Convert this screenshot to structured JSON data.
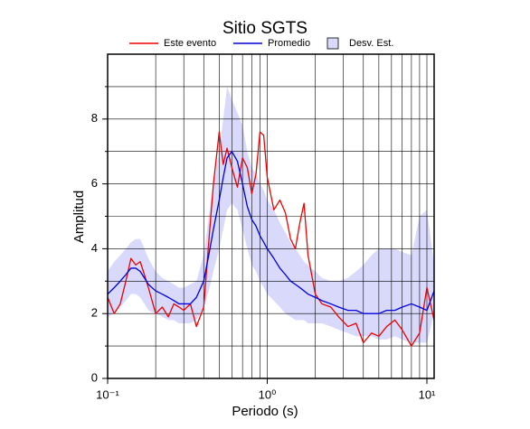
{
  "chart_data": {
    "type": "line",
    "title": "Sitio SGTS",
    "xlabel": "Periodo (s)",
    "ylabel": "Amplitud",
    "xscale": "log",
    "grid": true,
    "xlim": [
      0.1,
      11.1
    ],
    "ylim": [
      0,
      10
    ],
    "xticks": [
      {
        "value": 0.1,
        "label": "10⁻¹"
      },
      {
        "value": 1,
        "label": "10⁰"
      },
      {
        "value": 10,
        "label": "10¹"
      }
    ],
    "xminorticks": [
      0.2,
      0.3,
      0.4,
      0.5,
      0.6,
      0.7,
      0.8,
      0.9,
      2,
      3,
      4,
      5,
      6,
      7,
      8,
      9
    ],
    "yticks": [
      0,
      2,
      4,
      6,
      8
    ],
    "yminorticks": [
      1,
      3,
      5,
      7,
      9
    ],
    "x": [
      0.1,
      0.11,
      0.12,
      0.13,
      0.14,
      0.15,
      0.16,
      0.17,
      0.18,
      0.2,
      0.22,
      0.24,
      0.26,
      0.28,
      0.3,
      0.33,
      0.36,
      0.4,
      0.43,
      0.46,
      0.5,
      0.53,
      0.56,
      0.6,
      0.65,
      0.7,
      0.75,
      0.8,
      0.85,
      0.9,
      0.95,
      1.0,
      1.1,
      1.2,
      1.3,
      1.4,
      1.5,
      1.6,
      1.7,
      1.8,
      2.0,
      2.2,
      2.5,
      2.8,
      3.2,
      3.6,
      4.0,
      4.5,
      5.0,
      5.6,
      6.3,
      7.0,
      8.0,
      9.0,
      10.0,
      11.1
    ],
    "band": {
      "name": "Desv. Est.",
      "color": "#d9d9fb",
      "upper": [
        3.3,
        3.6,
        3.8,
        4.0,
        4.2,
        4.3,
        4.3,
        4.0,
        3.7,
        3.3,
        3.1,
        3.0,
        2.9,
        2.8,
        2.8,
        2.9,
        3.0,
        3.8,
        5.0,
        6.0,
        7.0,
        8.0,
        9.0,
        8.6,
        8.2,
        7.8,
        7.0,
        6.5,
        6.3,
        6.0,
        5.8,
        5.5,
        5.2,
        4.8,
        4.5,
        4.2,
        4.0,
        3.8,
        3.6,
        3.5,
        3.3,
        3.1,
        3.0,
        3.0,
        3.1,
        3.3,
        3.5,
        3.8,
        4.0,
        4.0,
        4.0,
        3.9,
        3.8,
        5.0,
        5.2,
        3.5
      ],
      "lower": [
        1.9,
        2.0,
        2.2,
        2.4,
        2.6,
        2.6,
        2.5,
        2.3,
        2.1,
        2.0,
        1.9,
        1.8,
        1.8,
        1.7,
        1.7,
        1.7,
        1.8,
        2.2,
        2.7,
        3.3,
        4.0,
        4.6,
        5.2,
        5.4,
        5.2,
        4.6,
        4.0,
        3.5,
        3.3,
        3.0,
        2.8,
        2.6,
        2.4,
        2.2,
        2.0,
        1.9,
        1.8,
        1.8,
        1.8,
        1.7,
        1.7,
        1.7,
        1.6,
        1.5,
        1.4,
        1.3,
        1.3,
        1.3,
        1.2,
        1.2,
        1.3,
        1.2,
        1.1,
        1.1,
        1.1,
        2.0
      ]
    },
    "series": [
      {
        "name": "Este evento",
        "color": "#ee0000",
        "values": [
          2.5,
          2.0,
          2.3,
          3.0,
          3.7,
          3.5,
          3.6,
          3.2,
          2.8,
          2.0,
          2.2,
          1.9,
          2.3,
          2.2,
          2.1,
          2.3,
          1.6,
          2.2,
          4.2,
          6.0,
          7.6,
          6.6,
          7.1,
          6.5,
          5.9,
          6.8,
          6.5,
          5.7,
          6.3,
          7.6,
          7.5,
          6.2,
          5.2,
          5.5,
          5.1,
          4.3,
          4.0,
          4.8,
          5.4,
          3.8,
          2.6,
          2.3,
          2.2,
          1.9,
          1.6,
          1.7,
          1.1,
          1.4,
          1.3,
          1.6,
          1.8,
          1.5,
          1.0,
          1.4,
          2.8,
          1.8
        ]
      },
      {
        "name": "Promedio",
        "color": "#0000dd",
        "values": [
          2.6,
          2.8,
          3.0,
          3.2,
          3.4,
          3.4,
          3.3,
          3.1,
          2.9,
          2.7,
          2.6,
          2.5,
          2.4,
          2.3,
          2.3,
          2.3,
          2.5,
          3.0,
          3.8,
          4.6,
          5.5,
          6.2,
          6.8,
          7.0,
          6.7,
          6.0,
          5.3,
          4.9,
          4.7,
          4.4,
          4.2,
          4.0,
          3.7,
          3.4,
          3.2,
          3.0,
          2.9,
          2.8,
          2.7,
          2.6,
          2.5,
          2.4,
          2.3,
          2.2,
          2.1,
          2.1,
          2.0,
          2.0,
          2.0,
          2.1,
          2.1,
          2.2,
          2.3,
          2.2,
          2.1,
          2.7
        ]
      }
    ]
  }
}
